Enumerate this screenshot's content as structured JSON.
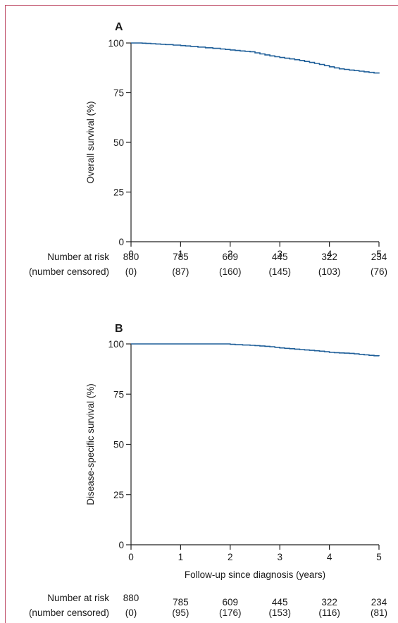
{
  "figure": {
    "frame_color": "#c0506a",
    "curve_color": "#1f5f99"
  },
  "chart_data": [
    {
      "type": "line",
      "panel_label": "A",
      "title": "",
      "xlabel": "",
      "ylabel": "Overall survival (%)",
      "xlim": [
        0,
        5
      ],
      "ylim": [
        0,
        100
      ],
      "x_ticks": [
        "0",
        "1",
        "2",
        "3",
        "4",
        "5"
      ],
      "y_ticks": [
        "0",
        "25",
        "50",
        "75",
        "100"
      ],
      "grid": false,
      "series": [
        {
          "x": [
            0,
            0.15,
            0.3,
            0.5,
            0.7,
            1.0,
            1.2,
            1.5,
            1.8,
            2.0,
            2.2,
            2.4,
            2.6,
            2.8,
            3.0,
            3.2,
            3.4,
            3.6,
            3.8,
            4.0,
            4.2,
            4.4,
            4.6,
            4.8,
            5.0
          ],
          "y": [
            100,
            100,
            99.8,
            99.5,
            99.2,
            98.7,
            98.3,
            97.6,
            97,
            96.5,
            96,
            95.6,
            94.5,
            93.5,
            92.7,
            92,
            91.2,
            90.2,
            89.2,
            88,
            87,
            86.4,
            85.8,
            85.2,
            84.6
          ]
        }
      ],
      "risk_table": {
        "row_labels": [
          "Number at risk",
          "(number censored)"
        ],
        "number_at_risk": [
          "880",
          "785",
          "609",
          "445",
          "322",
          "234"
        ],
        "number_censored": [
          "(0)",
          "(87)",
          "(160)",
          "(145)",
          "(103)",
          "(76)"
        ]
      }
    },
    {
      "type": "line",
      "panel_label": "B",
      "title": "",
      "xlabel": "Follow-up since diagnosis (years)",
      "ylabel": "Disease-specific survival (%)",
      "xlim": [
        0,
        5
      ],
      "ylim": [
        0,
        100
      ],
      "x_ticks": [
        "0",
        "1",
        "2",
        "3",
        "4",
        "5"
      ],
      "y_ticks": [
        "0",
        "25",
        "50",
        "75",
        "100"
      ],
      "grid": false,
      "series": [
        {
          "x": [
            0,
            0.5,
            1.0,
            1.5,
            1.9,
            2.1,
            2.4,
            2.6,
            2.8,
            3.0,
            3.2,
            3.4,
            3.6,
            3.8,
            4.0,
            4.2,
            4.4,
            4.6,
            4.8,
            5.0
          ],
          "y": [
            100,
            100,
            100,
            100,
            100,
            99.6,
            99.3,
            99,
            98.6,
            98,
            97.6,
            97.2,
            96.8,
            96.4,
            95.8,
            95.5,
            95.3,
            94.8,
            94.3,
            93.9
          ]
        }
      ],
      "risk_table": {
        "row_labels": [
          "Number at risk",
          "(number censored)"
        ],
        "number_at_risk": [
          "880",
          "785",
          "609",
          "445",
          "322",
          "234"
        ],
        "number_censored": [
          "(0)",
          "(95)",
          "(176)",
          "(153)",
          "(116)",
          "(81)"
        ]
      }
    }
  ]
}
